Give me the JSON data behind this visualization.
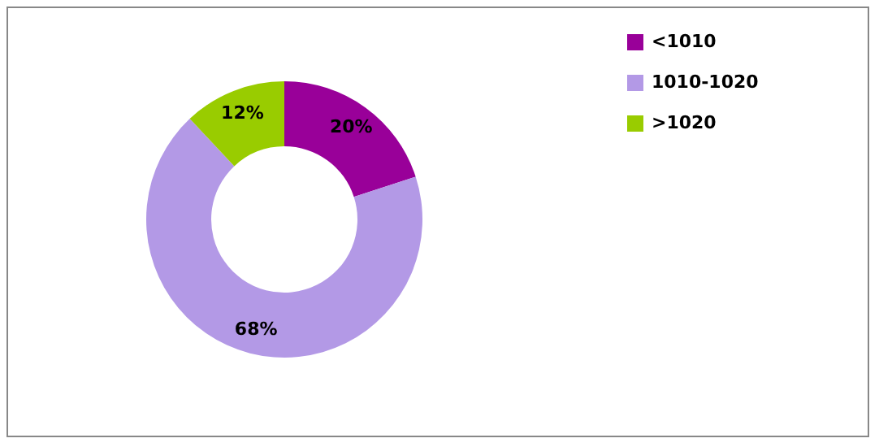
{
  "chart_data": {
    "type": "donut",
    "categories": [
      "<1010",
      "1010-1020",
      ">1020"
    ],
    "values": [
      20,
      68,
      12
    ],
    "colors": [
      "#990099",
      "#b399e6",
      "#99cc00"
    ],
    "value_labels": [
      "20%",
      "68%",
      "12%"
    ],
    "legend": "right"
  }
}
